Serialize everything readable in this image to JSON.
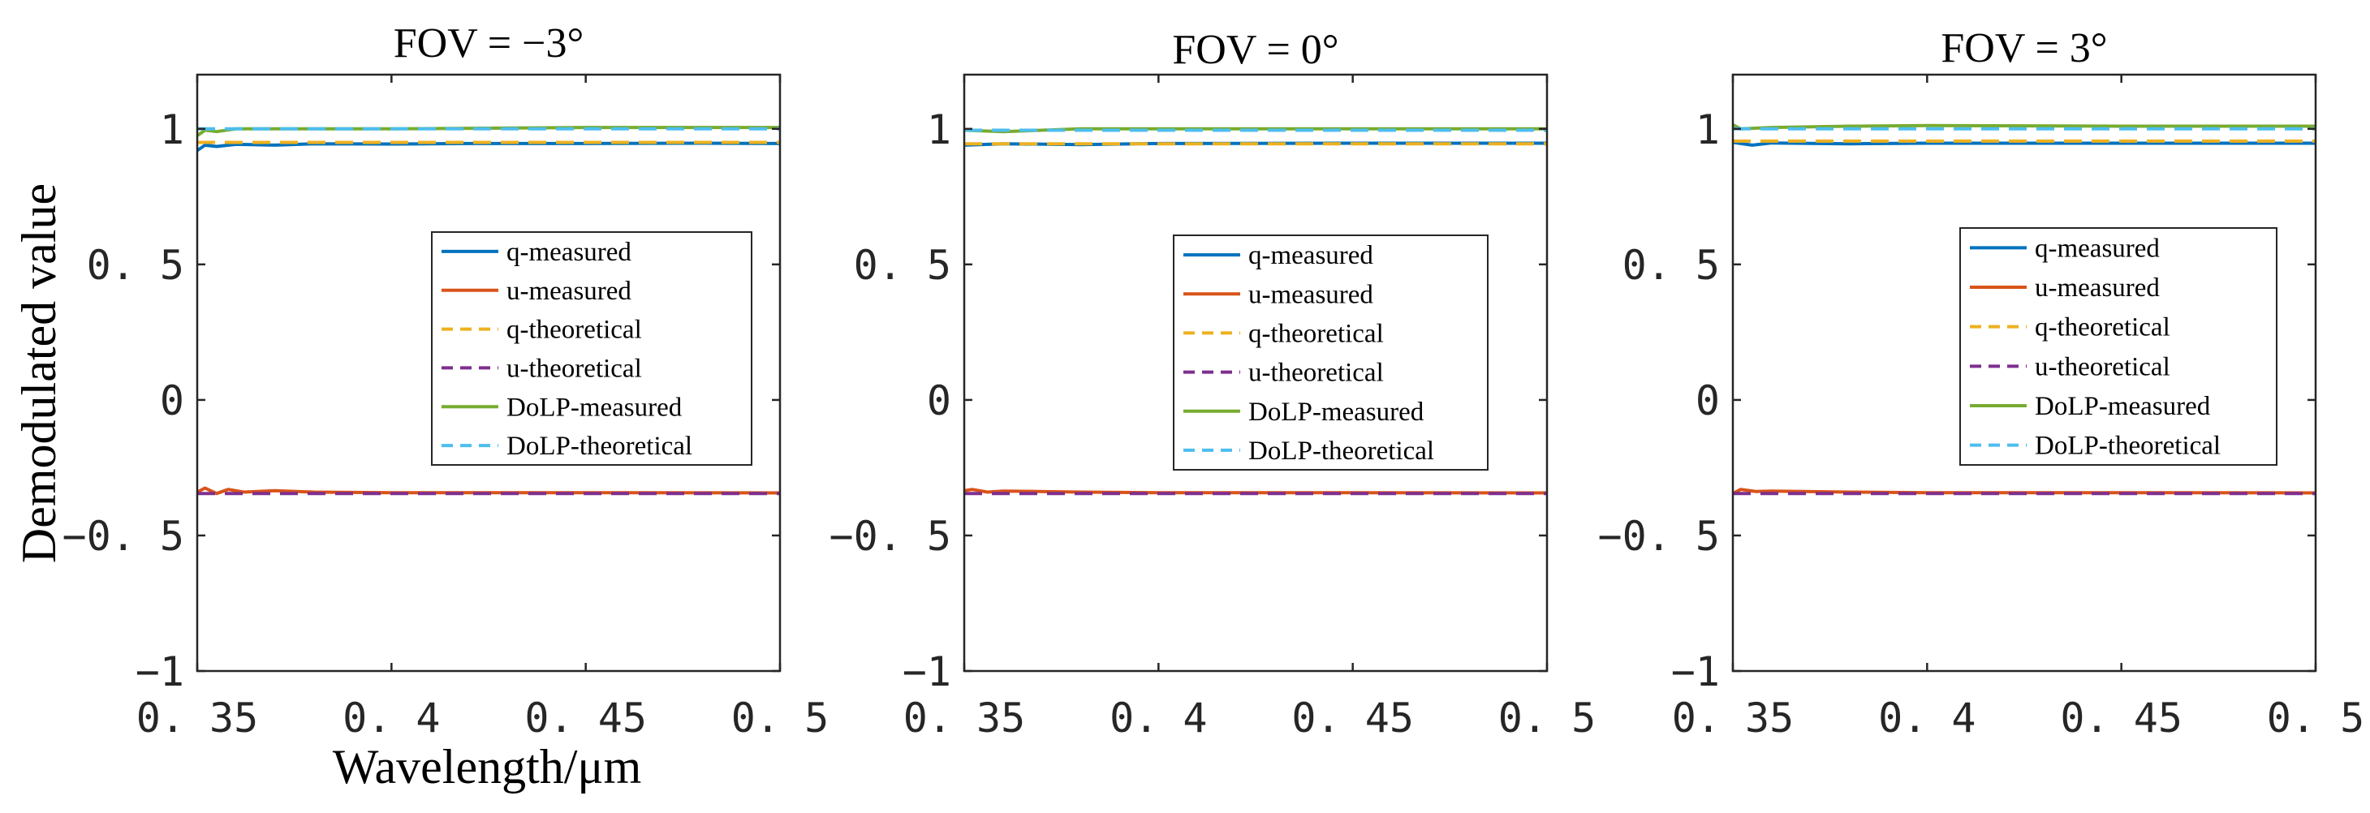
{
  "figure": {
    "ylabel": "Demodulated value",
    "xlabel": "Wavelength/μm"
  },
  "chart_data": [
    {
      "type": "line",
      "title": "FOV = −3°",
      "xlabel": "Wavelength/μm",
      "ylabel": "Demodulated value",
      "xlim": [
        0.35,
        0.5
      ],
      "ylim": [
        -1,
        1.2
      ],
      "xticks": [
        0.35,
        0.4,
        0.45,
        0.5
      ],
      "xtick_labels": [
        "0. 35",
        "0. 4",
        "0. 45",
        "0. 5"
      ],
      "yticks": [
        -1,
        -0.5,
        0,
        0.5,
        1
      ],
      "ytick_labels": [
        "−1",
        "−0. 5",
        "0",
        "0. 5",
        "1"
      ],
      "legend_location": "center-right",
      "series": [
        {
          "name": "q-measured",
          "color": "#0072BD",
          "style": "solid",
          "x": [
            0.35,
            0.352,
            0.355,
            0.36,
            0.37,
            0.38,
            0.4,
            0.42,
            0.45,
            0.48,
            0.5
          ],
          "y": [
            0.92,
            0.94,
            0.935,
            0.943,
            0.94,
            0.945,
            0.944,
            0.946,
            0.946,
            0.947,
            0.946
          ]
        },
        {
          "name": "u-measured",
          "color": "#D95319",
          "style": "solid",
          "x": [
            0.35,
            0.352,
            0.355,
            0.358,
            0.362,
            0.37,
            0.38,
            0.4,
            0.45,
            0.5
          ],
          "y": [
            -0.34,
            -0.325,
            -0.345,
            -0.33,
            -0.34,
            -0.335,
            -0.34,
            -0.342,
            -0.342,
            -0.343
          ]
        },
        {
          "name": "q-theoretical",
          "color": "#EDB120",
          "style": "dashed",
          "x": [
            0.35,
            0.4,
            0.45,
            0.5
          ],
          "y": [
            0.95,
            0.95,
            0.95,
            0.95
          ]
        },
        {
          "name": "u-theoretical",
          "color": "#7E2F8E",
          "style": "dashed",
          "x": [
            0.35,
            0.4,
            0.45,
            0.5
          ],
          "y": [
            -0.345,
            -0.345,
            -0.345,
            -0.345
          ]
        },
        {
          "name": "DoLP-measured",
          "color": "#77AC30",
          "style": "solid",
          "x": [
            0.35,
            0.352,
            0.355,
            0.36,
            0.38,
            0.4,
            0.45,
            0.5
          ],
          "y": [
            0.975,
            0.995,
            0.99,
            1.0,
            1.0,
            1.0,
            1.005,
            1.005
          ]
        },
        {
          "name": "DoLP-theoretical",
          "color": "#4DBEEE",
          "style": "dashed",
          "x": [
            0.35,
            0.4,
            0.45,
            0.5
          ],
          "y": [
            1.0,
            1.0,
            1.0,
            1.0
          ]
        }
      ]
    },
    {
      "type": "line",
      "title": "FOV = 0°",
      "xlabel": "",
      "ylabel": "",
      "xlim": [
        0.35,
        0.5
      ],
      "ylim": [
        -1,
        1.2
      ],
      "xticks": [
        0.35,
        0.4,
        0.45,
        0.5
      ],
      "xtick_labels": [
        "0. 35",
        "0. 4",
        "0. 45",
        "0. 5"
      ],
      "yticks": [
        -1,
        -0.5,
        0,
        0.5,
        1
      ],
      "ytick_labels": [
        "−1",
        "−0. 5",
        "0",
        "0. 5",
        "1"
      ],
      "legend_location": "center-right",
      "series": [
        {
          "name": "q-measured",
          "color": "#0072BD",
          "style": "solid",
          "x": [
            0.35,
            0.36,
            0.38,
            0.4,
            0.45,
            0.5
          ],
          "y": [
            0.94,
            0.945,
            0.942,
            0.946,
            0.947,
            0.947
          ]
        },
        {
          "name": "u-measured",
          "color": "#D95319",
          "style": "solid",
          "x": [
            0.35,
            0.352,
            0.356,
            0.36,
            0.38,
            0.4,
            0.45,
            0.5
          ],
          "y": [
            -0.335,
            -0.33,
            -0.34,
            -0.336,
            -0.34,
            -0.342,
            -0.342,
            -0.343
          ]
        },
        {
          "name": "q-theoretical",
          "color": "#EDB120",
          "style": "dashed",
          "x": [
            0.35,
            0.4,
            0.45,
            0.5
          ],
          "y": [
            0.945,
            0.945,
            0.945,
            0.945
          ]
        },
        {
          "name": "u-theoretical",
          "color": "#7E2F8E",
          "style": "dashed",
          "x": [
            0.35,
            0.4,
            0.45,
            0.5
          ],
          "y": [
            -0.345,
            -0.345,
            -0.345,
            -0.345
          ]
        },
        {
          "name": "DoLP-measured",
          "color": "#77AC30",
          "style": "solid",
          "x": [
            0.35,
            0.36,
            0.38,
            0.4,
            0.45,
            0.5
          ],
          "y": [
            0.995,
            0.99,
            1.0,
            1.0,
            1.0,
            1.0
          ]
        },
        {
          "name": "DoLP-theoretical",
          "color": "#4DBEEE",
          "style": "dashed",
          "x": [
            0.35,
            0.4,
            0.45,
            0.5
          ],
          "y": [
            0.995,
            0.995,
            0.995,
            0.995
          ]
        }
      ]
    },
    {
      "type": "line",
      "title": "FOV = 3°",
      "xlabel": "",
      "ylabel": "",
      "xlim": [
        0.35,
        0.5
      ],
      "ylim": [
        -1,
        1.2
      ],
      "xticks": [
        0.35,
        0.4,
        0.45,
        0.5
      ],
      "xtick_labels": [
        "0. 35",
        "0. 4",
        "0. 45",
        "0. 5"
      ],
      "yticks": [
        -1,
        -0.5,
        0,
        0.5,
        1
      ],
      "ytick_labels": [
        "−1",
        "−0. 5",
        "0",
        "0. 5",
        "1"
      ],
      "legend_location": "center-right",
      "series": [
        {
          "name": "q-measured",
          "color": "#0072BD",
          "style": "solid",
          "x": [
            0.35,
            0.355,
            0.36,
            0.38,
            0.4,
            0.45,
            0.5
          ],
          "y": [
            0.95,
            0.94,
            0.948,
            0.945,
            0.947,
            0.947,
            0.947
          ]
        },
        {
          "name": "u-measured",
          "color": "#D95319",
          "style": "solid",
          "x": [
            0.35,
            0.352,
            0.356,
            0.36,
            0.38,
            0.4,
            0.45,
            0.5
          ],
          "y": [
            -0.345,
            -0.33,
            -0.338,
            -0.336,
            -0.34,
            -0.342,
            -0.342,
            -0.343
          ]
        },
        {
          "name": "q-theoretical",
          "color": "#EDB120",
          "style": "dashed",
          "x": [
            0.35,
            0.4,
            0.45,
            0.5
          ],
          "y": [
            0.955,
            0.955,
            0.955,
            0.955
          ]
        },
        {
          "name": "u-theoretical",
          "color": "#7E2F8E",
          "style": "dashed",
          "x": [
            0.35,
            0.4,
            0.45,
            0.5
          ],
          "y": [
            -0.345,
            -0.345,
            -0.345,
            -0.345
          ]
        },
        {
          "name": "DoLP-measured",
          "color": "#77AC30",
          "style": "solid",
          "x": [
            0.35,
            0.352,
            0.36,
            0.38,
            0.4,
            0.45,
            0.5
          ],
          "y": [
            1.015,
            1.0,
            1.005,
            1.01,
            1.012,
            1.01,
            1.01
          ]
        },
        {
          "name": "DoLP-theoretical",
          "color": "#4DBEEE",
          "style": "dashed",
          "x": [
            0.35,
            0.4,
            0.45,
            0.5
          ],
          "y": [
            1.0,
            1.0,
            1.0,
            1.0
          ]
        }
      ]
    }
  ]
}
